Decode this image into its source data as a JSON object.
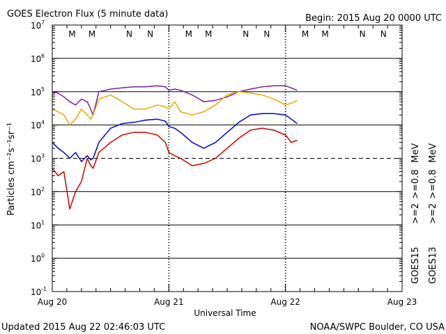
{
  "chart_data": {
    "type": "line",
    "title": "GOES Electron Flux (5 minute data)",
    "begin_label": "Begin: 2015 Aug 20 0000 UTC",
    "xlabel": "Universal Time",
    "ylabel": "Particles cm⁻²s⁻¹sr⁻¹",
    "x_unit": "days since 2015 Aug 20 0000 UTC",
    "xlim": [
      0,
      3
    ],
    "ylog_range": [
      -1,
      7
    ],
    "x_ticks": [
      {
        "x": 0,
        "label": "Aug 20"
      },
      {
        "x": 1,
        "label": "Aug 21"
      },
      {
        "x": 2,
        "label": "Aug 22"
      },
      {
        "x": 3,
        "label": "Aug 23"
      }
    ],
    "y_ticks": [
      {
        "exp": 7,
        "label": "10",
        "sup": "7"
      },
      {
        "exp": 6,
        "label": "10",
        "sup": "6"
      },
      {
        "exp": 5,
        "label": "10",
        "sup": "5"
      },
      {
        "exp": 4,
        "label": "10",
        "sup": "4"
      },
      {
        "exp": 3,
        "label": "10",
        "sup": "3"
      },
      {
        "exp": 2,
        "label": "10",
        "sup": "2"
      },
      {
        "exp": 1,
        "label": "10",
        "sup": "1"
      },
      {
        "exp": 0,
        "label": "10",
        "sup": "0"
      },
      {
        "exp": -1,
        "label": "10",
        "sup": "-1"
      }
    ],
    "solid_gridlines_exp": [
      6,
      5,
      4,
      2,
      1,
      0
    ],
    "dashed_gridlines_exp": [
      3
    ],
    "day_boundaries": [
      1,
      2
    ],
    "markers_top": [
      {
        "x": 0.17,
        "label": "M",
        "color": "#cc0000"
      },
      {
        "x": 0.34,
        "label": "M",
        "color": "#0000cc"
      },
      {
        "x": 0.66,
        "label": "N",
        "color": "#cc0000"
      },
      {
        "x": 0.84,
        "label": "N",
        "color": "#0000cc"
      },
      {
        "x": 1.17,
        "label": "M",
        "color": "#cc0000"
      },
      {
        "x": 1.34,
        "label": "M",
        "color": "#0000cc"
      },
      {
        "x": 1.66,
        "label": "N",
        "color": "#cc0000"
      },
      {
        "x": 1.84,
        "label": "N",
        "color": "#0000cc"
      },
      {
        "x": 2.17,
        "label": "M",
        "color": "#cc0000"
      },
      {
        "x": 2.34,
        "label": "M",
        "color": "#0000cc"
      },
      {
        "x": 2.66,
        "label": "N",
        "color": "#cc0000"
      },
      {
        "x": 2.84,
        "label": "N",
        "color": "#0000cc"
      }
    ],
    "legend": {
      "columns": [
        {
          "satellite": "GOES15",
          "satellite_color": "#000000",
          "items": [
            {
              "label": ">=2",
              "color": "#0000cc"
            },
            {
              "label": ">=0.8",
              "color": "#7b1fa2"
            }
          ]
        },
        {
          "satellite": "GOES13",
          "satellite_color": "#000000",
          "items": [
            {
              "label": ">=2",
              "color": "#cc0000"
            },
            {
              "label": ">=0.8",
              "color": "#e6a800"
            }
          ]
        }
      ],
      "unit": "MeV"
    },
    "series": [
      {
        "name": "GOES15 >=0.8 MeV",
        "color": "#7b1fa2",
        "x": [
          0,
          0.05,
          0.1,
          0.15,
          0.2,
          0.25,
          0.3,
          0.33,
          0.35,
          0.4,
          0.5,
          0.6,
          0.7,
          0.8,
          0.9,
          0.97,
          1.0,
          1.05,
          1.1,
          1.2,
          1.3,
          1.4,
          1.5,
          1.6,
          1.7,
          1.8,
          1.9,
          2.0,
          2.05,
          2.1
        ],
        "y": [
          100000.0,
          90000.0,
          70000.0,
          50000.0,
          40000.0,
          60000.0,
          50000.0,
          30000.0,
          20000.0,
          100000.0,
          120000.0,
          130000.0,
          140000.0,
          140000.0,
          150000.0,
          140000.0,
          110000.0,
          120000.0,
          110000.0,
          80000.0,
          50000.0,
          55000.0,
          70000.0,
          100000.0,
          120000.0,
          140000.0,
          150000.0,
          150000.0,
          130000.0,
          110000.0
        ]
      },
      {
        "name": "GOES13 >=0.8 MeV",
        "color": "#e6a800",
        "x": [
          0,
          0.05,
          0.1,
          0.15,
          0.2,
          0.25,
          0.3,
          0.33,
          0.35,
          0.4,
          0.5,
          0.6,
          0.7,
          0.8,
          0.9,
          0.97,
          1.0,
          1.05,
          1.1,
          1.2,
          1.3,
          1.4,
          1.5,
          1.6,
          1.7,
          1.8,
          1.9,
          2.0,
          2.05,
          2.1
        ],
        "y": [
          30000.0,
          25000.0,
          20000.0,
          10000.0,
          15000.0,
          30000.0,
          20000.0,
          15000.0,
          20000.0,
          60000.0,
          80000.0,
          50000.0,
          30000.0,
          30000.0,
          40000.0,
          35000.0,
          30000.0,
          50000.0,
          25000.0,
          20000.0,
          25000.0,
          40000.0,
          80000.0,
          100000.0,
          90000.0,
          80000.0,
          60000.0,
          40000.0,
          45000.0,
          55000.0
        ]
      },
      {
        "name": "GOES15 >=2 MeV",
        "color": "#0000cc",
        "x": [
          0,
          0.05,
          0.1,
          0.15,
          0.2,
          0.25,
          0.3,
          0.33,
          0.35,
          0.4,
          0.5,
          0.6,
          0.7,
          0.8,
          0.9,
          0.97,
          1.0,
          1.05,
          1.1,
          1.2,
          1.3,
          1.4,
          1.5,
          1.6,
          1.7,
          1.8,
          1.9,
          2.0,
          2.05,
          2.1
        ],
        "y": [
          3000.0,
          2000.0,
          1500.0,
          1000.0,
          1500.0,
          800.0,
          1200.0,
          900.0,
          1000.0,
          3000.0,
          8000.0,
          11000.0,
          12000.0,
          14000.0,
          15000.0,
          13000.0,
          9000.0,
          8000.0,
          6000.0,
          3000.0,
          2000.0,
          3000.0,
          6000.0,
          12000.0,
          20000.0,
          22000.0,
          22000.0,
          20000.0,
          15000.0,
          11000.0
        ]
      },
      {
        "name": "GOES13 >=2 MeV",
        "color": "#cc0000",
        "x": [
          0,
          0.05,
          0.1,
          0.15,
          0.2,
          0.25,
          0.3,
          0.33,
          0.35,
          0.4,
          0.5,
          0.6,
          0.7,
          0.8,
          0.9,
          0.97,
          1.0,
          1.05,
          1.1,
          1.2,
          1.3,
          1.4,
          1.5,
          1.6,
          1.7,
          1.8,
          1.9,
          2.0,
          2.05,
          2.1
        ],
        "y": [
          500.0,
          300.0,
          400.0,
          30.0,
          100.0,
          200.0,
          1000.0,
          600.0,
          500.0,
          1500.0,
          3000.0,
          5000.0,
          6000.0,
          6000.0,
          5000.0,
          3000.0,
          1500.0,
          1200.0,
          1000.0,
          600.0,
          700.0,
          1000.0,
          2000.0,
          4000.0,
          7000.0,
          8000.0,
          7000.0,
          5000.0,
          3000.0,
          3500.0
        ]
      }
    ]
  },
  "footer": {
    "updated": "Updated 2015 Aug 22 02:46:03 UTC",
    "source": "NOAA/SWPC Boulder, CO USA"
  }
}
